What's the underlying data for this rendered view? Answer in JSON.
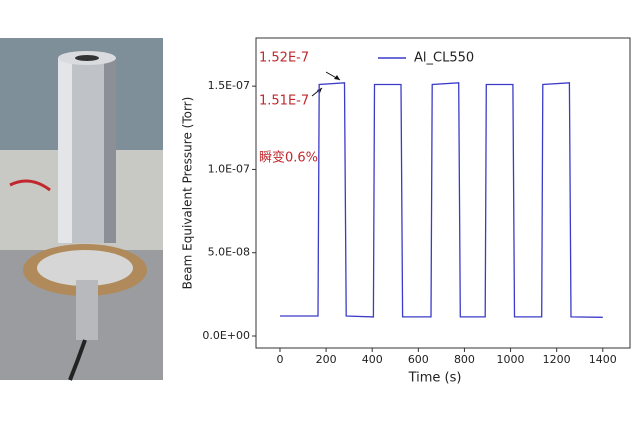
{
  "chart_data": {
    "type": "line",
    "xlabel": "Time (s)",
    "ylabel": "Beam Equivalent Pressure (Torr)",
    "x": [
      0,
      165,
      170,
      280,
      287,
      405,
      410,
      525,
      532,
      655,
      660,
      775,
      782,
      890,
      895,
      1010,
      1017,
      1135,
      1140,
      1255,
      1262,
      1400
    ],
    "series": [
      {
        "name": "Al_CL550",
        "color": "#3b3bc8",
        "values": [
          1.2e-08,
          1.2e-08,
          1.51e-07,
          1.52e-07,
          1.2e-08,
          1.15e-08,
          1.51e-07,
          1.51e-07,
          1.15e-08,
          1.15e-08,
          1.51e-07,
          1.52e-07,
          1.15e-08,
          1.15e-08,
          1.51e-07,
          1.51e-07,
          1.15e-08,
          1.15e-08,
          1.51e-07,
          1.52e-07,
          1.15e-08,
          1.12e-08
        ]
      }
    ],
    "xlim": [
      -104,
      1518
    ],
    "ylim": [
      -7.2e-09,
      1.789e-07
    ],
    "xticks": [
      0,
      200,
      400,
      600,
      800,
      1000,
      1200,
      1400
    ],
    "yticks": [
      {
        "value": 0,
        "label": "0.0E+00"
      },
      {
        "value": 5e-08,
        "label": "5.0E-08"
      },
      {
        "value": 1e-07,
        "label": "1.0E-07"
      },
      {
        "value": 1.5e-07,
        "label": "1.5E-07"
      }
    ],
    "legend": "top",
    "annotations": [
      "1.52E-7",
      "1.51E-7",
      "瞬变0.6%"
    ],
    "annotation_color": "#c0282d"
  }
}
